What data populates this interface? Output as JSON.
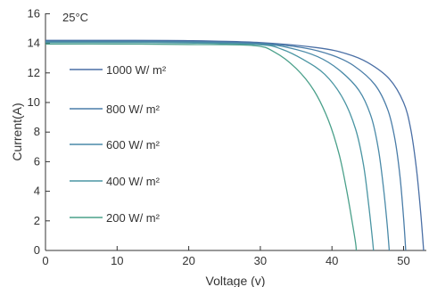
{
  "chart_data": {
    "type": "line",
    "annotation": "25°C",
    "xlabel": "Voltage (v)",
    "ylabel": "Current(A)",
    "xlim": [
      0,
      53
    ],
    "ylim": [
      0,
      16
    ],
    "xticks": [
      0,
      10,
      20,
      30,
      40,
      50
    ],
    "yticks": [
      0,
      2,
      4,
      6,
      8,
      10,
      12,
      14,
      16
    ],
    "grid": false,
    "legend_position": "left",
    "series": [
      {
        "name": "1000 W/ m²",
        "color": "#4a6fa5",
        "points": [
          [
            0,
            14.2
          ],
          [
            10,
            14.2
          ],
          [
            20,
            14.18
          ],
          [
            30,
            14.05
          ],
          [
            38,
            13.7
          ],
          [
            42,
            13.3
          ],
          [
            45,
            12.7
          ],
          [
            48,
            11.6
          ],
          [
            50,
            10.0
          ],
          [
            51,
            8.2
          ],
          [
            51.8,
            5.5
          ],
          [
            52.4,
            2.5
          ],
          [
            52.8,
            0
          ]
        ]
      },
      {
        "name": "800 W/ m²",
        "color": "#4a7da8",
        "points": [
          [
            0,
            14.15
          ],
          [
            10,
            14.15
          ],
          [
            20,
            14.12
          ],
          [
            30,
            14.0
          ],
          [
            36,
            13.7
          ],
          [
            40,
            13.2
          ],
          [
            43,
            12.5
          ],
          [
            46,
            11.2
          ],
          [
            47.8,
            9.5
          ],
          [
            48.8,
            7.5
          ],
          [
            49.5,
            5.0
          ],
          [
            50.0,
            2.2
          ],
          [
            50.3,
            0
          ]
        ]
      },
      {
        "name": "600 W/ m²",
        "color": "#4a8aa8",
        "points": [
          [
            0,
            14.1
          ],
          [
            10,
            14.1
          ],
          [
            20,
            14.07
          ],
          [
            30,
            13.95
          ],
          [
            34,
            13.7
          ],
          [
            38,
            13.1
          ],
          [
            41,
            12.2
          ],
          [
            43.8,
            10.8
          ],
          [
            45.5,
            9.0
          ],
          [
            46.5,
            6.8
          ],
          [
            47.2,
            4.2
          ],
          [
            47.7,
            1.8
          ],
          [
            48.0,
            0
          ]
        ]
      },
      {
        "name": "400 W/ m²",
        "color": "#4a95a3",
        "points": [
          [
            0,
            14.05
          ],
          [
            10,
            14.05
          ],
          [
            20,
            14.02
          ],
          [
            30,
            13.9
          ],
          [
            33,
            13.6
          ],
          [
            36,
            12.9
          ],
          [
            39,
            11.9
          ],
          [
            41.5,
            10.3
          ],
          [
            43.3,
            8.2
          ],
          [
            44.4,
            5.8
          ],
          [
            45.1,
            3.2
          ],
          [
            45.6,
            1.0
          ],
          [
            45.8,
            0
          ]
        ]
      },
      {
        "name": "200 W/ m²",
        "color": "#4aa08a",
        "points": [
          [
            0,
            13.95
          ],
          [
            10,
            13.95
          ],
          [
            20,
            13.92
          ],
          [
            29,
            13.85
          ],
          [
            32,
            13.4
          ],
          [
            35,
            12.3
          ],
          [
            37.5,
            10.8
          ],
          [
            39.5,
            8.8
          ],
          [
            41.0,
            6.5
          ],
          [
            42.0,
            4.2
          ],
          [
            42.8,
            2.0
          ],
          [
            43.3,
            0.5
          ],
          [
            43.4,
            0
          ]
        ]
      }
    ]
  }
}
